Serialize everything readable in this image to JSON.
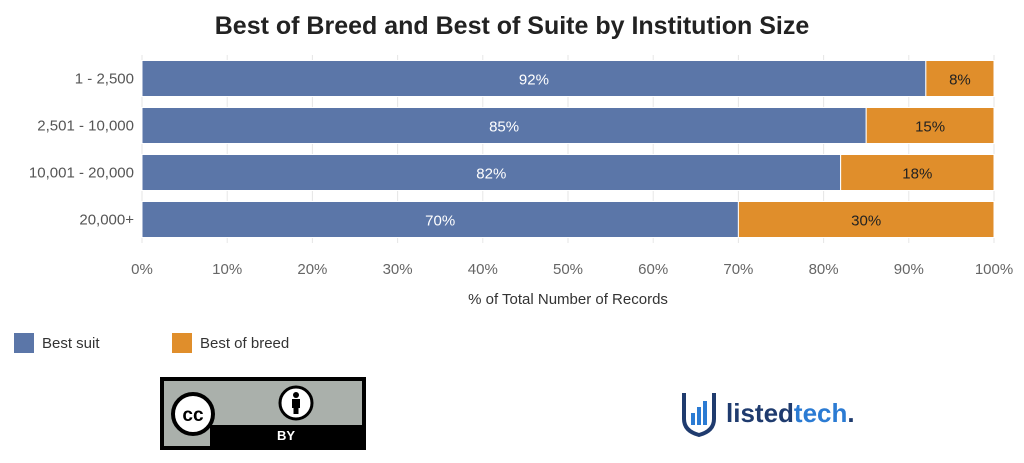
{
  "chart_data": {
    "type": "bar",
    "orientation": "horizontal",
    "stacked": true,
    "title": "Best of Breed and Best of Suite by Institution Size",
    "xlabel": "% of Total Number of Records",
    "ylabel": "",
    "xlim": [
      0,
      100
    ],
    "x_ticks": [
      "0%",
      "10%",
      "20%",
      "30%",
      "40%",
      "50%",
      "60%",
      "70%",
      "80%",
      "90%",
      "100%"
    ],
    "categories": [
      "1 - 2,500",
      "2,501 - 10,000",
      "10,001 - 20,000",
      "20,000+"
    ],
    "series": [
      {
        "name": "Best suit",
        "values": [
          92,
          85,
          82,
          70
        ],
        "labels": [
          "92%",
          "85%",
          "82%",
          "70%"
        ],
        "color": "#5b76a8"
      },
      {
        "name": "Best of breed",
        "values": [
          8,
          15,
          18,
          30
        ],
        "labels": [
          "8%",
          "15%",
          "18%",
          "30%"
        ],
        "color": "#e08e2b"
      }
    ],
    "grid": "vertical",
    "legend": "bottom-left"
  },
  "license": {
    "icon": "cc-by-icon",
    "by_label": "BY"
  },
  "logo": {
    "icon": "listedtech-logo-icon",
    "name_part1": "listed",
    "name_part2": "tech",
    "name_part3": ".",
    "colors": {
      "primary": "#1f3b6e",
      "accent": "#2b7bd3"
    }
  }
}
